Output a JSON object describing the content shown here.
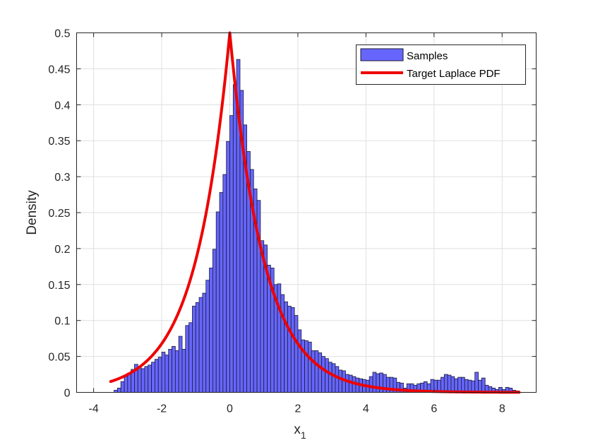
{
  "chart_data": {
    "type": "bar",
    "xlabel": "x",
    "xlabel_subscript": "1",
    "ylabel": "Density",
    "xlim": [
      -4.5,
      9.0
    ],
    "ylim": [
      0,
      0.5
    ],
    "xticks": [
      -4,
      -2,
      0,
      2,
      4,
      6,
      8
    ],
    "yticks": [
      0,
      0.05,
      0.1,
      0.15,
      0.2,
      0.25,
      0.3,
      0.35,
      0.4,
      0.45,
      0.5
    ],
    "grid": true,
    "legend_location": "top-right",
    "legend": [
      "Samples",
      "Target Laplace PDF"
    ],
    "histogram": {
      "name": "Samples",
      "color": "#6666ff",
      "edge_color": "#1a1a33",
      "bin_start": -3.4,
      "bin_width": 0.1,
      "values": [
        0.003,
        0.006,
        0.015,
        0.022,
        0.027,
        0.032,
        0.039,
        0.035,
        0.033,
        0.036,
        0.038,
        0.042,
        0.046,
        0.049,
        0.056,
        0.052,
        0.06,
        0.064,
        0.058,
        0.078,
        0.06,
        0.093,
        0.097,
        0.12,
        0.125,
        0.132,
        0.138,
        0.156,
        0.173,
        0.199,
        0.251,
        0.278,
        0.303,
        0.349,
        0.385,
        0.428,
        0.463,
        0.42,
        0.372,
        0.335,
        0.31,
        0.283,
        0.267,
        0.211,
        0.205,
        0.177,
        0.173,
        0.15,
        0.151,
        0.136,
        0.126,
        0.12,
        0.118,
        0.107,
        0.087,
        0.073,
        0.072,
        0.07,
        0.058,
        0.058,
        0.055,
        0.05,
        0.047,
        0.042,
        0.04,
        0.036,
        0.031,
        0.03,
        0.025,
        0.024,
        0.022,
        0.02,
        0.019,
        0.018,
        0.017,
        0.022,
        0.028,
        0.026,
        0.027,
        0.025,
        0.021,
        0.021,
        0.02,
        0.014,
        0.013,
        0.006,
        0.012,
        0.012,
        0.01,
        0.012,
        0.013,
        0.015,
        0.012,
        0.018,
        0.017,
        0.017,
        0.021,
        0.025,
        0.024,
        0.022,
        0.019,
        0.021,
        0.021,
        0.018,
        0.017,
        0.016,
        0.028,
        0.017,
        0.02,
        0.01,
        0.008,
        0.006,
        0.004,
        0.007,
        0.004,
        0.007,
        0.006,
        0.003,
        0.002
      ]
    },
    "pdf_curve": {
      "name": "Target Laplace PDF",
      "color": "#ee0000",
      "distribution": "laplace",
      "location": 0,
      "scale": 1,
      "x_range": [
        -3.5,
        8.5
      ]
    }
  }
}
